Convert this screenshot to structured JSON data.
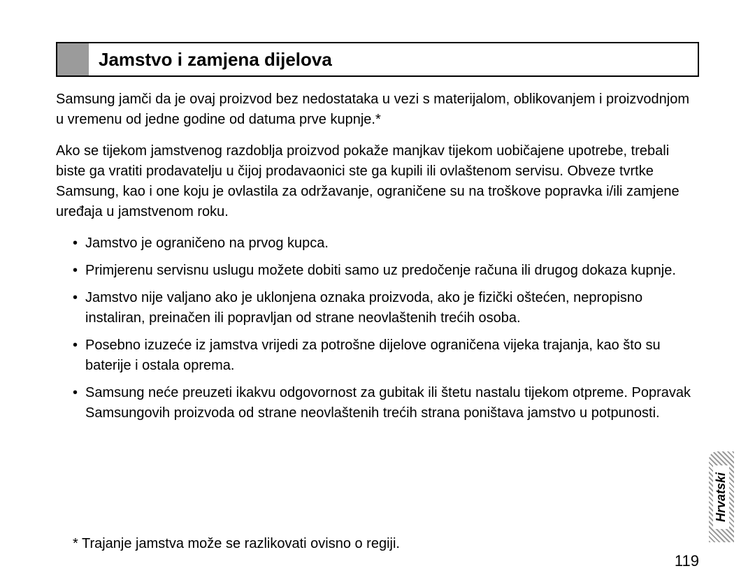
{
  "heading": "Jamstvo i zamjena dijelova",
  "para1": "Samsung jamči da je ovaj proizvod bez nedostataka u vezi s materijalom, oblikovanjem i proizvodnjom u vremenu od jedne godine od datuma prve kupnje.*",
  "para2": "Ako se tijekom jamstvenog razdoblja proizvod pokaže manjkav tijekom uobičajene upotrebe, trebali biste ga vratiti prodavatelju u čijoj prodavaonici ste ga kupili ili ovlaštenom servisu. Obveze tvrtke Samsung, kao i one koju je ovlastila za održavanje, ograničene su na troškove popravka i/ili zamjene uređaja u jamstvenom roku.",
  "bullets": [
    "Jamstvo je ograničeno na prvog kupca.",
    "Primjerenu servisnu uslugu možete dobiti samo uz predočenje računa ili drugog dokaza kupnje.",
    "Jamstvo nije valjano ako je uklonjena oznaka proizvoda, ako je fizički oštećen, nepropisno instaliran, preinačen ili popravljan od strane neovlaštenih trećih osoba.",
    "Posebno izuzeće iz jamstva vrijedi za potrošne dijelove ograničena vijeka trajanja, kao što su baterije i ostala oprema.",
    "Samsung neće preuzeti ikakvu odgovornost za gubitak ili štetu nastalu tijekom otpreme. Popravak Samsungovih proizvoda od strane neovlaštenih trećih strana poništava jamstvo u potpunosti."
  ],
  "footnote": "*  Trajanje jamstva može se razlikovati ovisno o regiji.",
  "page_number": "119",
  "side_tab": "Hrvatski"
}
